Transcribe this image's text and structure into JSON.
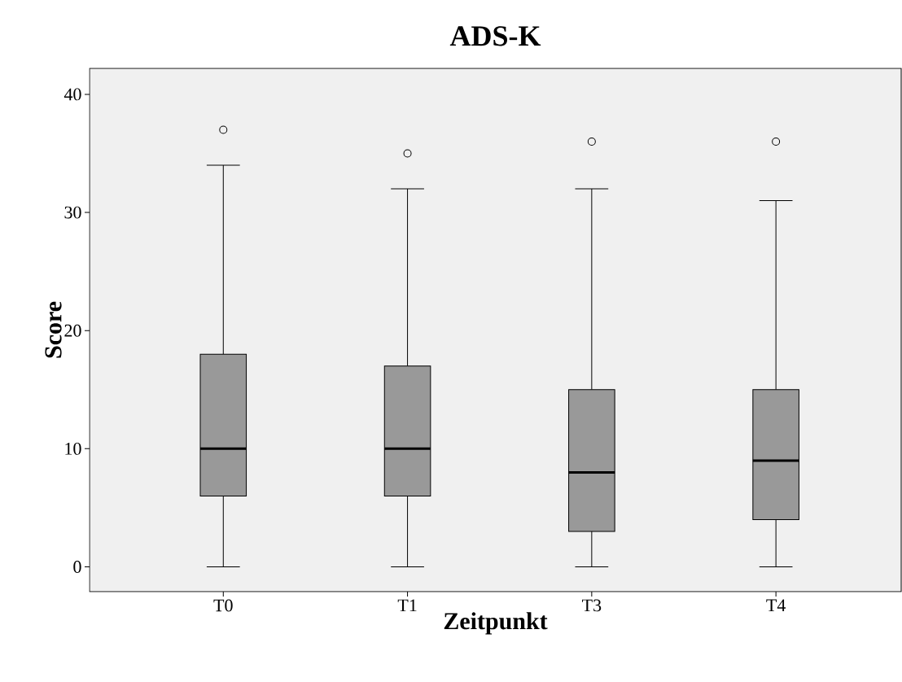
{
  "chart_data": {
    "type": "box",
    "title": "ADS-K",
    "xlabel": "Zeitpunkt",
    "ylabel": "Score",
    "categories": [
      "T0",
      "T1",
      "T3",
      "T4"
    ],
    "boxes": [
      {
        "low": 0,
        "q1": 6,
        "median": 10,
        "q3": 18,
        "high": 34,
        "outliers": [
          37
        ]
      },
      {
        "low": 0,
        "q1": 6,
        "median": 10,
        "q3": 17,
        "high": 32,
        "outliers": [
          35
        ]
      },
      {
        "low": 0,
        "q1": 3,
        "median": 8,
        "q3": 15,
        "high": 32,
        "outliers": [
          36
        ]
      },
      {
        "low": 0,
        "q1": 4,
        "median": 9,
        "q3": 15,
        "high": 31,
        "outliers": [
          36
        ]
      }
    ],
    "color": "#999999",
    "ylim": [
      -2.1,
      42.2
    ],
    "yticks": [
      0,
      10,
      20,
      30,
      40
    ]
  }
}
